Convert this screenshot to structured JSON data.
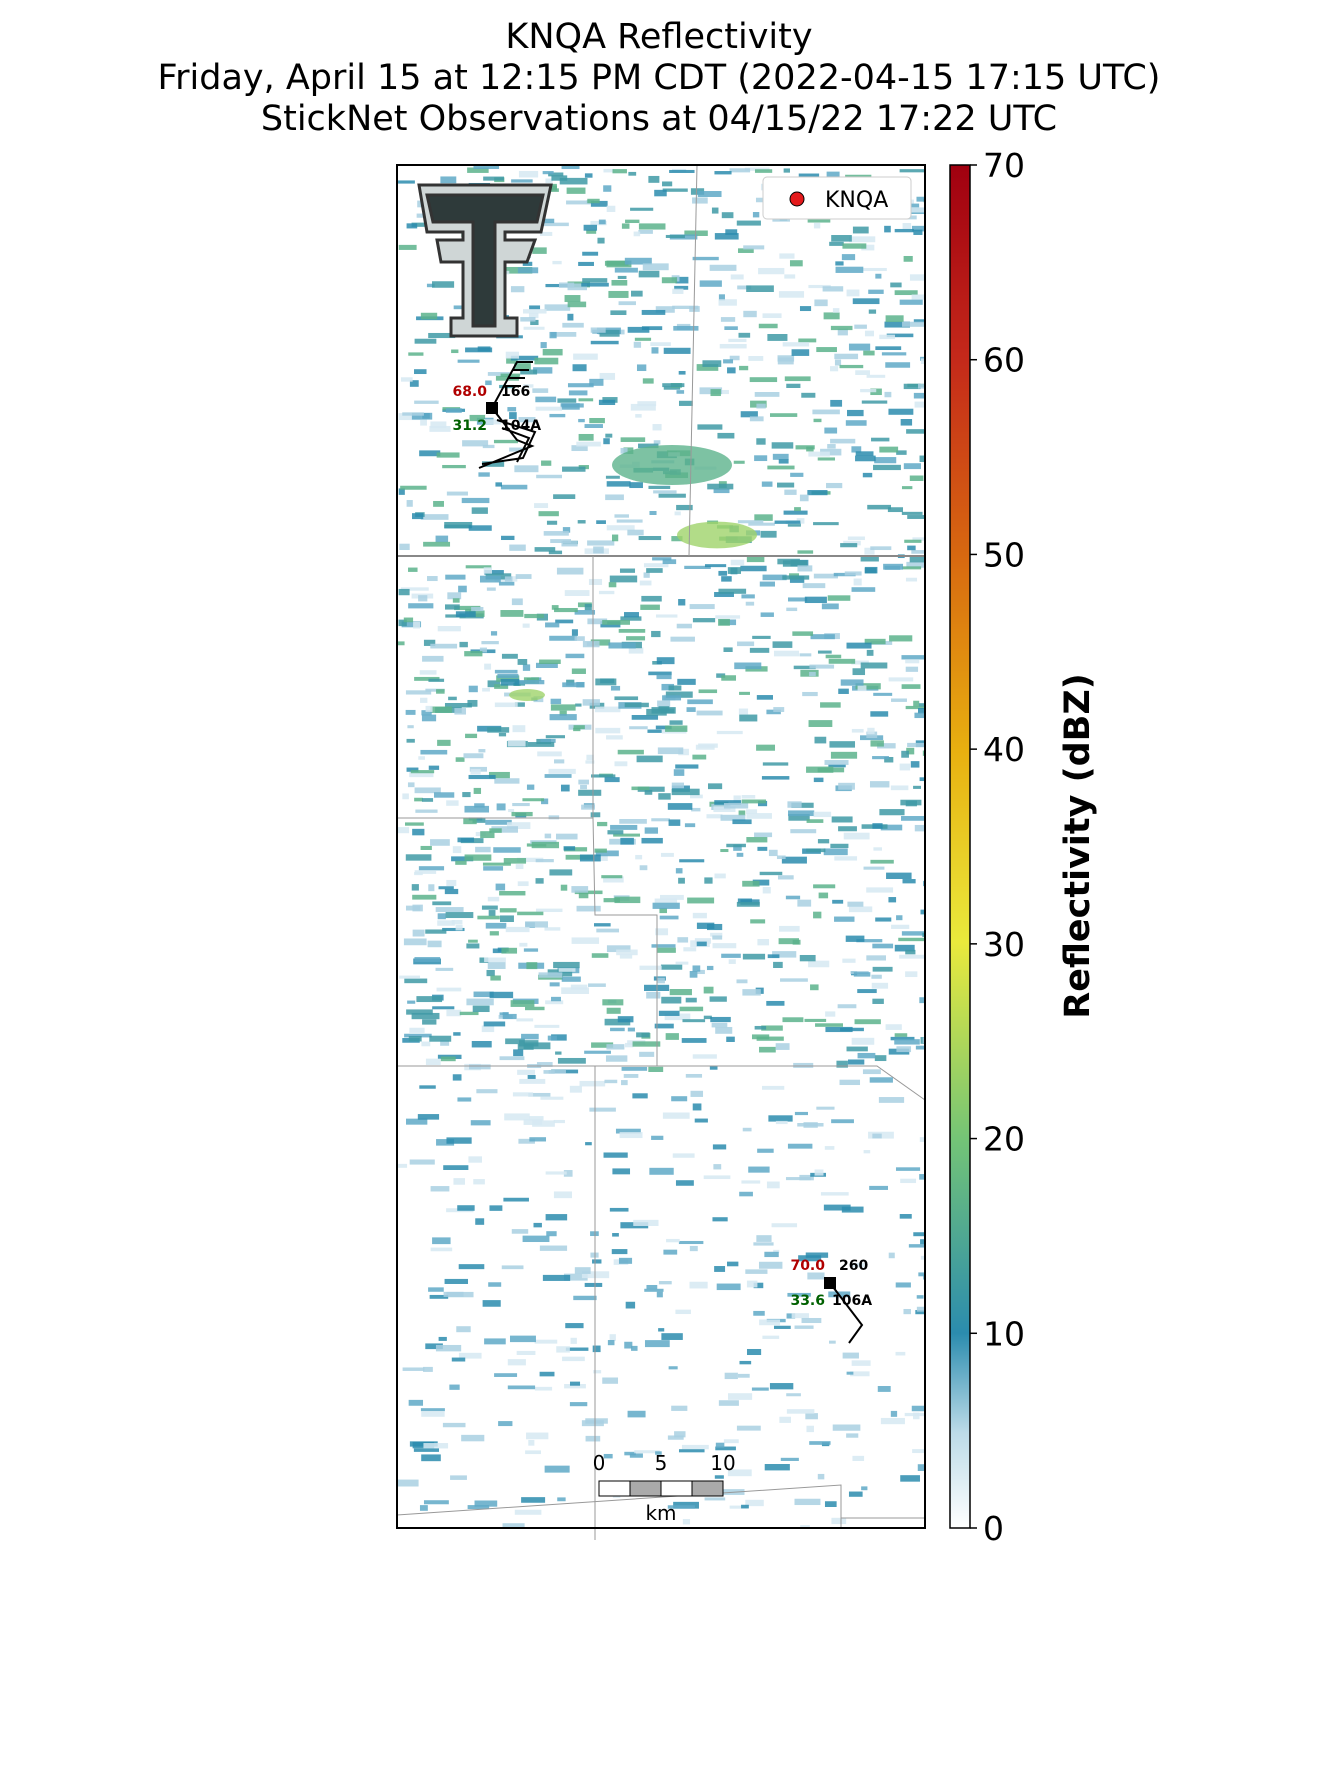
{
  "title": [
    "KNQA Reflectivity",
    "Friday, April 15 at 12:15 PM CDT (2022-04-15 17:15 UTC)",
    "StickNet Observations at 04/15/22 17:22 UTC"
  ],
  "legend": {
    "label": "KNQA",
    "color": "#e41a1c"
  },
  "colorbar": {
    "label": "Reflectivity (dBZ)",
    "lim": [
      0,
      70
    ],
    "ticks": [
      0,
      10,
      20,
      30,
      40,
      50,
      60,
      70
    ]
  },
  "stations": [
    {
      "temp": "68.0",
      "direction": "166",
      "speed": "31.2",
      "id": "104A"
    },
    {
      "temp": "70.0",
      "direction": "260",
      "speed": "33.6",
      "id": "106A"
    }
  ],
  "scale_bar": {
    "ticks": [
      "0",
      "5",
      "10"
    ],
    "unit": "km"
  }
}
